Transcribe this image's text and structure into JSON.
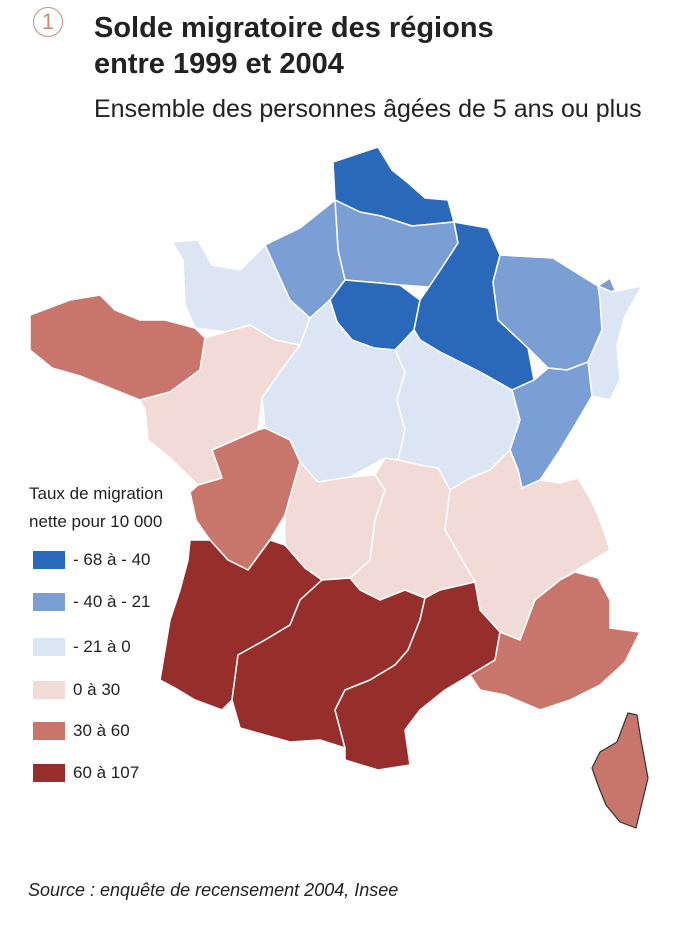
{
  "figure": {
    "number": "1",
    "title": "Solde migratoire des régions\nentre 1999 et 2004",
    "subtitle": "Ensemble des personnes âgées de 5 ans ou plus",
    "source": "Source : enquête de recensement 2004, Insee"
  },
  "legend": {
    "title": "Taux de migration nette pour 10 000",
    "classes": [
      {
        "label": "- 68 à - 40",
        "color": "#2a68b9"
      },
      {
        "label": "- 40 à - 21",
        "color": "#7b9fd4"
      },
      {
        "label": "- 21 à 0",
        "color": "#dbe5f4"
      },
      {
        "label": "0 à 30",
        "color": "#f2dad6"
      },
      {
        "label": "30 à 60",
        "color": "#c8766b"
      },
      {
        "label": "60 à 107",
        "color": "#962e2c"
      }
    ]
  },
  "map_data": {
    "regions": [
      {
        "region": "Nord-Pas-de-Calais",
        "class": 0
      },
      {
        "region": "Picardie",
        "class": 1
      },
      {
        "region": "Haute-Normandie",
        "class": 1
      },
      {
        "region": "Île-de-France",
        "class": 0
      },
      {
        "region": "Champagne-Ardenne",
        "class": 0
      },
      {
        "region": "Lorraine",
        "class": 1
      },
      {
        "region": "Alsace",
        "class": 2
      },
      {
        "region": "Basse-Normandie",
        "class": 2
      },
      {
        "region": "Bretagne",
        "class": 4
      },
      {
        "region": "Pays de la Loire",
        "class": 3
      },
      {
        "region": "Centre",
        "class": 2
      },
      {
        "region": "Bourgogne",
        "class": 2
      },
      {
        "region": "Franche-Comté",
        "class": 1
      },
      {
        "region": "Poitou-Charentes",
        "class": 4
      },
      {
        "region": "Limousin",
        "class": 3
      },
      {
        "region": "Auvergne",
        "class": 3
      },
      {
        "region": "Rhône-Alpes",
        "class": 3
      },
      {
        "region": "Aquitaine",
        "class": 5
      },
      {
        "region": "Midi-Pyrénées",
        "class": 5
      },
      {
        "region": "Languedoc-Roussillon",
        "class": 5
      },
      {
        "region": "Provence-Alpes-Côte d'Azur",
        "class": 4
      },
      {
        "region": "Corse",
        "class": 4
      }
    ]
  }
}
